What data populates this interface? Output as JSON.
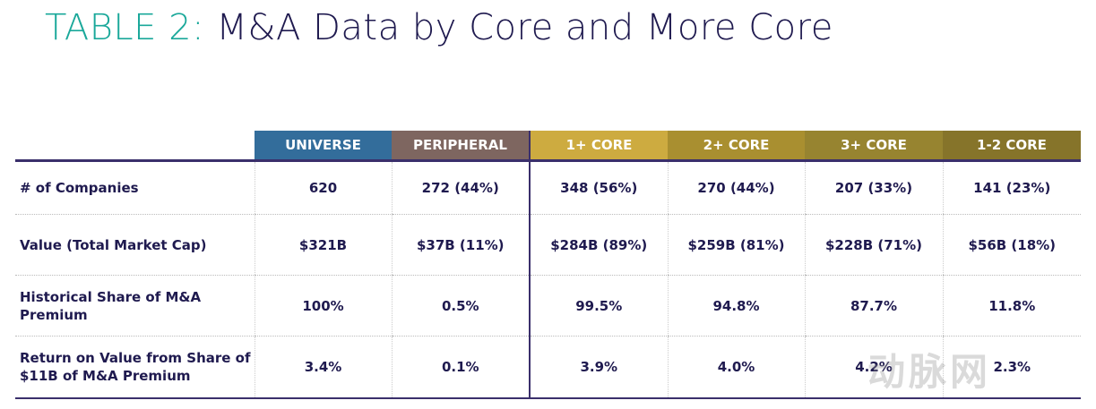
{
  "title": {
    "prefix": "TABLE 2:",
    "text": "M&A Data by Core and More Core"
  },
  "columns": [
    {
      "label": "UNIVERSE",
      "color": "#336d9b"
    },
    {
      "label": "PERIPHERAL",
      "color": "#7e6660"
    },
    {
      "label": "1+ CORE",
      "color": "#cdab40"
    },
    {
      "label": "2+ CORE",
      "color": "#a98f30"
    },
    {
      "label": "3+ CORE",
      "color": "#978430"
    },
    {
      "label": "1-2 CORE",
      "color": "#86742a"
    }
  ],
  "rows": [
    {
      "label": "# of Companies",
      "values": [
        "620",
        "272  (44%)",
        "348  (56%)",
        "270  (44%)",
        "207  (33%)",
        "141  (23%)"
      ]
    },
    {
      "label": "Value (Total Market Cap)",
      "values": [
        "$321B",
        "$37B  (11%)",
        "$284B  (89%)",
        "$259B  (81%)",
        "$228B  (71%)",
        "$56B  (18%)"
      ]
    },
    {
      "label": "Historical Share of M&A Premium",
      "values": [
        "100%",
        "0.5%",
        "99.5%",
        "94.8%",
        "87.7%",
        "11.8%"
      ]
    },
    {
      "label": "Return on Value from Share of $11B of M&A Premium",
      "values": [
        "3.4%",
        "0.1%",
        "3.9%",
        "4.0%",
        "4.2%",
        "2.3%"
      ]
    }
  ],
  "watermark": "动脉网"
}
